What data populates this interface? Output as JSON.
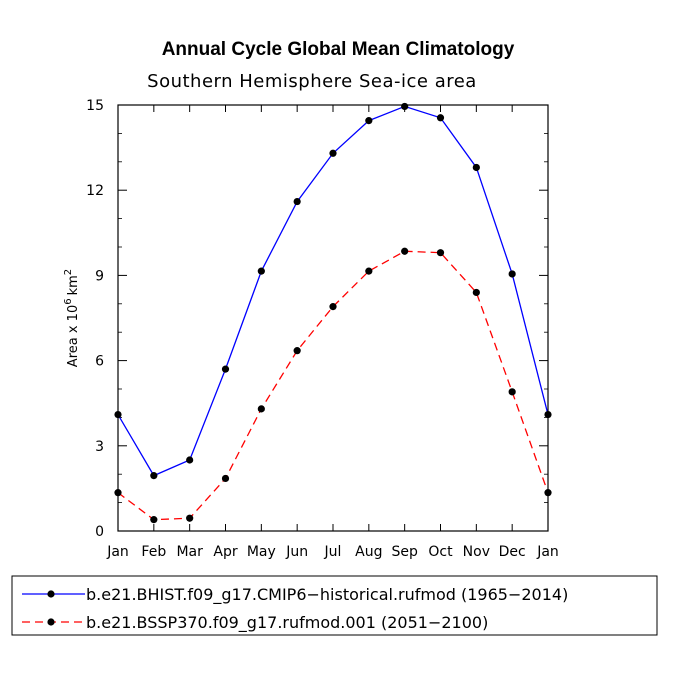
{
  "chart_data": {
    "type": "line",
    "title": "Annual Cycle Global Mean Climatology",
    "subtitle": "Southern Hemisphere Sea-ice area",
    "ylabel": "Area x 10^6 km^2",
    "ylabel_prefix": "Area x 10",
    "ylabel_exp": "6",
    "ylabel_unit": "km",
    "ylabel_unit_exp": "2",
    "xlabel": "",
    "categories": [
      "Jan",
      "Feb",
      "Mar",
      "Apr",
      "May",
      "Jun",
      "Jul",
      "Aug",
      "Sep",
      "Oct",
      "Nov",
      "Dec",
      "Jan"
    ],
    "ylim": [
      0,
      15
    ],
    "yticks": [
      0,
      3,
      6,
      9,
      12,
      15
    ],
    "series": [
      {
        "name": "b.e21.BHIST.f09_g17.CMIP6−historical.rufmod (1965−2014)",
        "color": "#0000ff",
        "dash": "solid",
        "values": [
          4.1,
          1.95,
          2.5,
          5.7,
          9.15,
          11.6,
          13.3,
          14.45,
          14.95,
          14.55,
          12.8,
          9.05,
          4.1
        ]
      },
      {
        "name": "b.e21.BSSP370.f09_g17.rufmod.001 (2051−2100)",
        "color": "#ff0000",
        "dash": "dashed",
        "values": [
          1.35,
          0.4,
          0.45,
          1.85,
          4.3,
          6.35,
          7.9,
          9.15,
          9.85,
          9.8,
          8.4,
          4.9,
          1.35
        ]
      }
    ],
    "marker_color": "#000000",
    "legend_position": "bottom"
  }
}
